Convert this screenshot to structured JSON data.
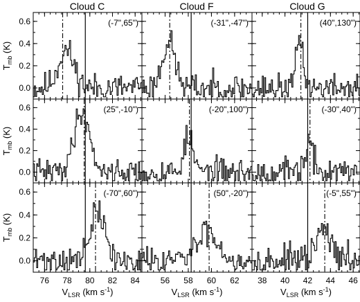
{
  "chart_data": {
    "type": "line",
    "layout": "3x3 grid of spectra, shared axes per column and row",
    "column_titles": [
      "Cloud C",
      "Cloud F",
      "Cloud G"
    ],
    "ylabel": {
      "main": "T",
      "sub": "mb",
      "rest": " (K)"
    },
    "xlabel": {
      "main": "V",
      "sub": "LSR",
      "mid": " (km s",
      "sup": "-1",
      "end": ")"
    },
    "ylim": [
      -0.1,
      0.68
    ],
    "yticks": [
      0.0,
      0.2,
      0.4,
      0.6
    ],
    "ytick_labels": [
      "0.0",
      "0.2",
      "0.4",
      "0.6"
    ],
    "columns": [
      {
        "xlim": [
          75.0,
          84.6
        ],
        "xticks": [
          76,
          78,
          80,
          82,
          84
        ],
        "xtick_labels": [
          "76",
          "78",
          "80",
          "82",
          "84"
        ],
        "solid_line_v": 79.6
      },
      {
        "xlim": [
          54.0,
          63.5
        ],
        "xticks": [
          56,
          58,
          60,
          62
        ],
        "xtick_labels": [
          "56",
          "58",
          "60",
          "62"
        ],
        "solid_line_v": 58.25
      },
      {
        "xlim": [
          37.1,
          46.6
        ],
        "xticks": [
          38,
          40,
          42,
          44,
          46
        ],
        "xtick_labels": [
          "38",
          "40",
          "42",
          "44",
          "46"
        ],
        "solid_line_v": 42.0
      }
    ],
    "panels": [
      {
        "row": 0,
        "col": 0,
        "position": "(-7\",65\")",
        "dash_v": 77.6,
        "peak_v": 77.9,
        "peak": 0.34,
        "width": 0.7,
        "noise": 0.065,
        "seed": 11
      },
      {
        "row": 0,
        "col": 1,
        "position": "(-31\",-47\")",
        "dash_v": 56.4,
        "peak_v": 56.3,
        "peak": 0.42,
        "width": 0.55,
        "noise": 0.065,
        "seed": 23
      },
      {
        "row": 0,
        "col": 2,
        "position": "(40\",130\")",
        "dash_v": 41.4,
        "peak_v": 41.3,
        "peak": 0.46,
        "width": 0.3,
        "noise": 0.06,
        "seed": 37
      },
      {
        "row": 1,
        "col": 0,
        "position": "(25\",-10\")",
        "dash_v": 79.5,
        "peak_v": 79.3,
        "peak": 0.56,
        "width": 0.7,
        "noise": 0.06,
        "seed": 41
      },
      {
        "row": 1,
        "col": 1,
        "position": "(-20\",100\")",
        "dash_v": 58.1,
        "peak_v": 58.0,
        "peak": 0.32,
        "width": 0.4,
        "noise": 0.065,
        "seed": 53
      },
      {
        "row": 1,
        "col": 2,
        "position": "(-30\",40\")",
        "dash_v": 42.2,
        "peak_v": 42.1,
        "peak": 0.26,
        "width": 0.35,
        "noise": 0.065,
        "seed": 67
      },
      {
        "row": 2,
        "col": 0,
        "position": "(-70\",60\")",
        "dash_v": 80.5,
        "peak_v": 80.7,
        "peak": 0.42,
        "width": 0.65,
        "noise": 0.065,
        "seed": 71
      },
      {
        "row": 2,
        "col": 1,
        "position": "(50\",-20\")",
        "dash_v": 59.8,
        "peak_v": 59.7,
        "peak": 0.26,
        "width": 0.9,
        "noise": 0.06,
        "seed": 83
      },
      {
        "row": 2,
        "col": 2,
        "position": "(-5\",55\")",
        "dash_v": 43.5,
        "peak_v": 43.4,
        "peak": 0.27,
        "width": 0.6,
        "noise": 0.065,
        "seed": 97
      }
    ]
  }
}
